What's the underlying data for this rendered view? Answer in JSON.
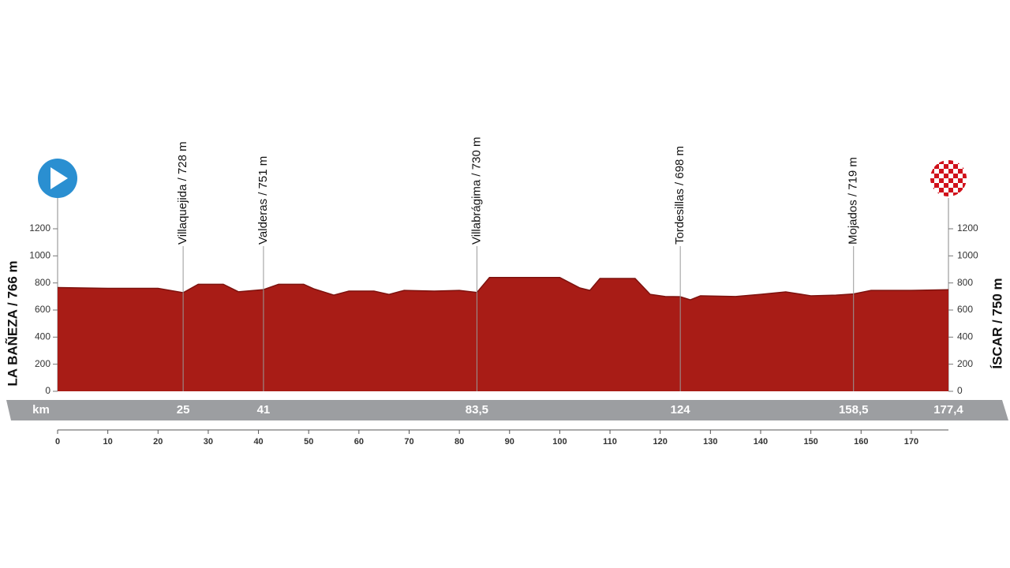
{
  "chart_data": {
    "type": "area",
    "start_label": "LA BAÑEZA / 766 m",
    "finish_label": "ÍSCAR / 750 m",
    "distance_unit": "km",
    "color": "#a81c16",
    "x": [
      0,
      10,
      20,
      25,
      28,
      33,
      36,
      41,
      44,
      49,
      51,
      55,
      58,
      63,
      66,
      69,
      75,
      80,
      83.5,
      86,
      100,
      104,
      106,
      108,
      115,
      118,
      121,
      124,
      126,
      128,
      135,
      140,
      145,
      150,
      155,
      158.5,
      162,
      170,
      177.4
    ],
    "values": [
      766,
      760,
      760,
      728,
      790,
      790,
      735,
      751,
      790,
      790,
      757,
      710,
      740,
      740,
      715,
      745,
      740,
      745,
      730,
      840,
      840,
      763,
      745,
      833,
      833,
      716,
      700,
      698,
      675,
      705,
      700,
      716,
      734,
      705,
      710,
      719,
      745,
      745,
      750
    ],
    "waypoints": [
      {
        "name": "Villaquejida / 728 m",
        "km": 25
      },
      {
        "name": "Valderas / 751 m",
        "km": 41
      },
      {
        "name": "Villabrágima / 730 m",
        "km": {
          "value": 83.5,
          "label": "83,5"
        }
      },
      {
        "name": "Tordesillas / 698 m",
        "km": 124
      },
      {
        "name": "Mojados / 719 m",
        "km": {
          "value": 158.5,
          "label": "158,5"
        }
      }
    ],
    "finish_km": {
      "value": 177.4,
      "label": "177,4"
    },
    "xlim": [
      0,
      177.4
    ],
    "xticks": [
      0,
      10,
      20,
      30,
      40,
      50,
      60,
      70,
      80,
      90,
      100,
      110,
      120,
      130,
      140,
      150,
      160,
      170
    ],
    "ylim": [
      0,
      1200
    ],
    "yticks": [
      0,
      200,
      400,
      600,
      800,
      1000,
      1200
    ],
    "y2lim": [
      0,
      1200
    ],
    "y2ticks": [
      0,
      200,
      400,
      600,
      800,
      1000,
      1200
    ]
  }
}
